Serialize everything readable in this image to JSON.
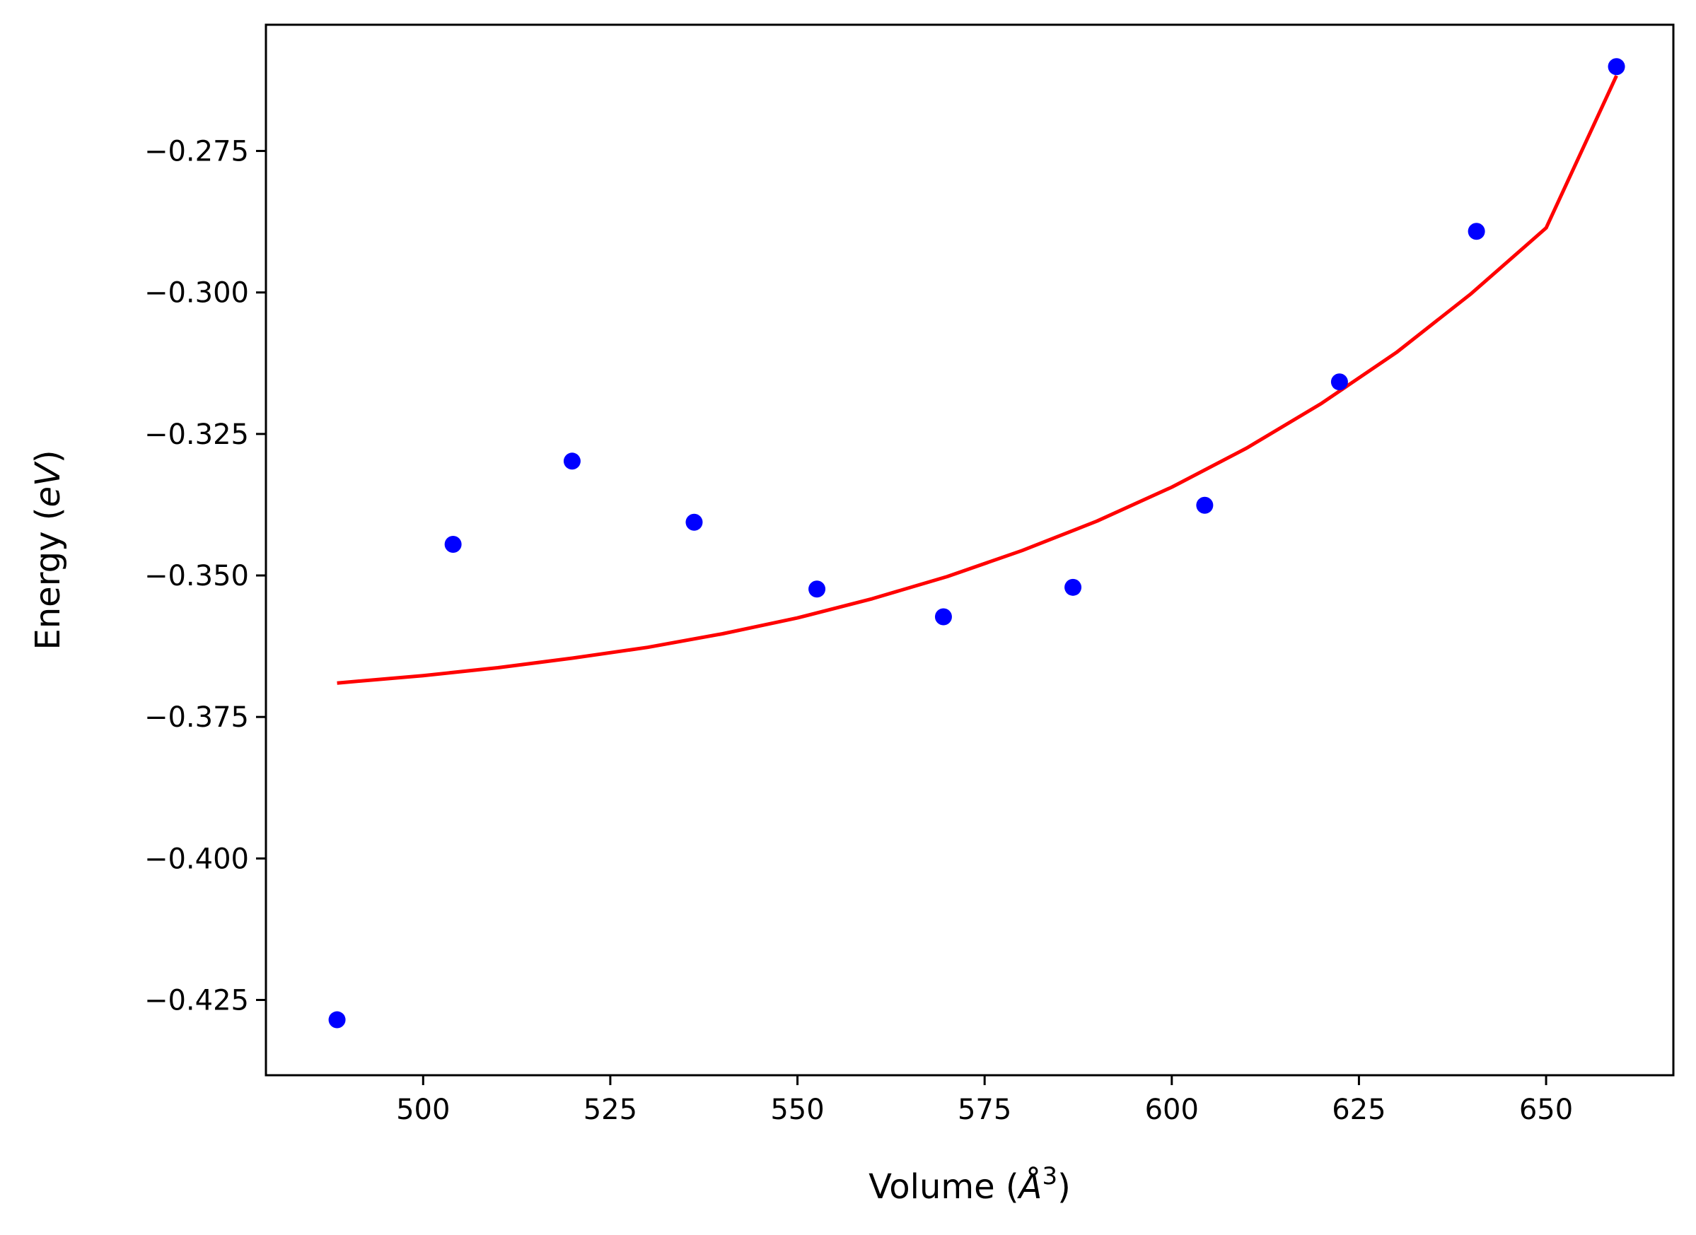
{
  "chart_data": {
    "type": "scatter",
    "title": "",
    "xlabel_prefix": "Volume (",
    "xlabel_unit": "Å",
    "xlabel_exp": "3",
    "xlabel_suffix": ")",
    "ylabel_prefix": "Energy (",
    "ylabel_unit": "eV",
    "ylabel_suffix": ")",
    "xlim": [
      479,
      667
    ],
    "ylim": [
      -0.4383,
      -0.2527
    ],
    "xticks": [
      500,
      525,
      550,
      575,
      600,
      625,
      650
    ],
    "xtick_labels": [
      "500",
      "525",
      "550",
      "575",
      "600",
      "625",
      "650"
    ],
    "yticks": [
      -0.275,
      -0.3,
      -0.325,
      -0.35,
      -0.375,
      -0.4,
      -0.425
    ],
    "ytick_labels": [
      "−0.275",
      "−0.300",
      "−0.325",
      "−0.350",
      "−0.375",
      "−0.400",
      "−0.425"
    ],
    "grid": false,
    "series": [
      {
        "name": "data",
        "type": "scatter",
        "color": "#0000ff",
        "x": [
          488.5,
          504.0,
          519.9,
          536.2,
          552.6,
          569.5,
          586.8,
          604.4,
          622.4,
          640.7,
          659.4
        ],
        "y": [
          -0.4285,
          -0.3445,
          -0.3298,
          -0.3406,
          -0.3524,
          -0.3573,
          -0.3521,
          -0.3376,
          -0.3158,
          -0.2892,
          -0.2601
        ]
      },
      {
        "name": "fit",
        "type": "line",
        "color": "#ff0000",
        "x": [
          488.5,
          500,
          510,
          520,
          530,
          540,
          550,
          560,
          570,
          580,
          590,
          600,
          610,
          620,
          630,
          640,
          650,
          659.4
        ],
        "y": [
          -0.369,
          -0.3677,
          -0.3663,
          -0.3646,
          -0.3627,
          -0.3603,
          -0.3575,
          -0.3541,
          -0.3502,
          -0.3456,
          -0.3404,
          -0.3344,
          -0.3275,
          -0.3196,
          -0.3106,
          -0.3002,
          -0.2886,
          -0.2617
        ]
      }
    ]
  }
}
